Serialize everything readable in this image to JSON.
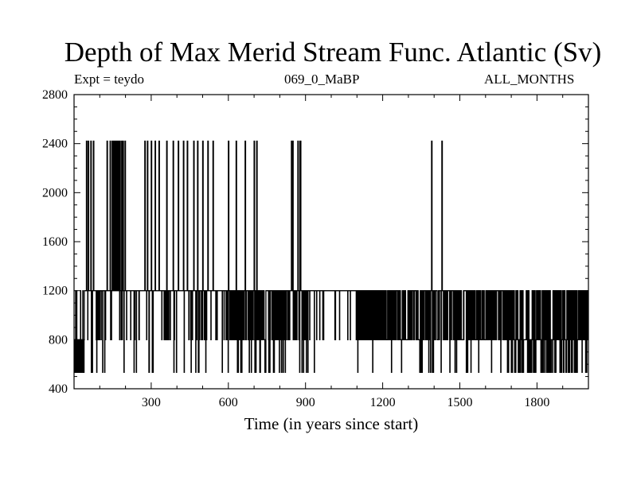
{
  "header": {
    "expt": "Expt = teydo",
    "run": "069_0_MaBP",
    "period": "ALL_MONTHS"
  },
  "chart_data": {
    "type": "line",
    "title": "Depth of Max Merid Stream Func. Atlantic (Sv)",
    "xlabel": "Time (in years since start)",
    "ylabel": "",
    "xlim": [
      0,
      2000
    ],
    "ylim": [
      400,
      2800
    ],
    "x_ticks": [
      300,
      600,
      900,
      1200,
      1500,
      1800
    ],
    "y_ticks": [
      400,
      800,
      1200,
      1600,
      2000,
      2400,
      2800
    ],
    "grid": false,
    "legend": "none",
    "line_color": "#000000",
    "levels": [
      534,
      800,
      1200,
      2420
    ],
    "series": [
      {
        "values_description_note": "",
        "x_start": 0,
        "x_step": 1,
        "values": []
      }
    ]
  }
}
